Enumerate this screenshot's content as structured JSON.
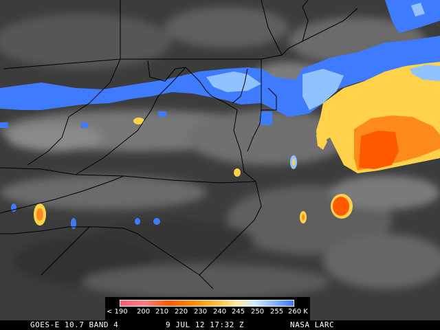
{
  "image": {
    "kind": "satellite infrared imagery with state/coast outlines",
    "colors": {
      "base_gray": "#4a4a4a",
      "cloud_gray": "#9a9a9a",
      "blue_band": "#3f7bff",
      "light_blue": "#8fc2ff",
      "yellow": "#ffd24a",
      "orange": "#ff8a1c",
      "red_orange": "#ff5a00",
      "outline": "#000000"
    }
  },
  "legend": {
    "labels": [
      "< 190",
      "200",
      "210",
      "220",
      "230",
      "240",
      "245",
      "250",
      "255",
      "260 K"
    ],
    "colors": [
      "#ff5a7a",
      "#ff8080",
      "#ff5a00",
      "#ff8c00",
      "#ffbf40",
      "#ffe9a0",
      "#c8ecff",
      "#86b6ff",
      "#3b74ff"
    ]
  },
  "footer": {
    "satellite": "GOES-E 10.7 BAND 4",
    "datetime": "9 JUL 12 17:32 Z",
    "credit": "NASA LARC"
  }
}
